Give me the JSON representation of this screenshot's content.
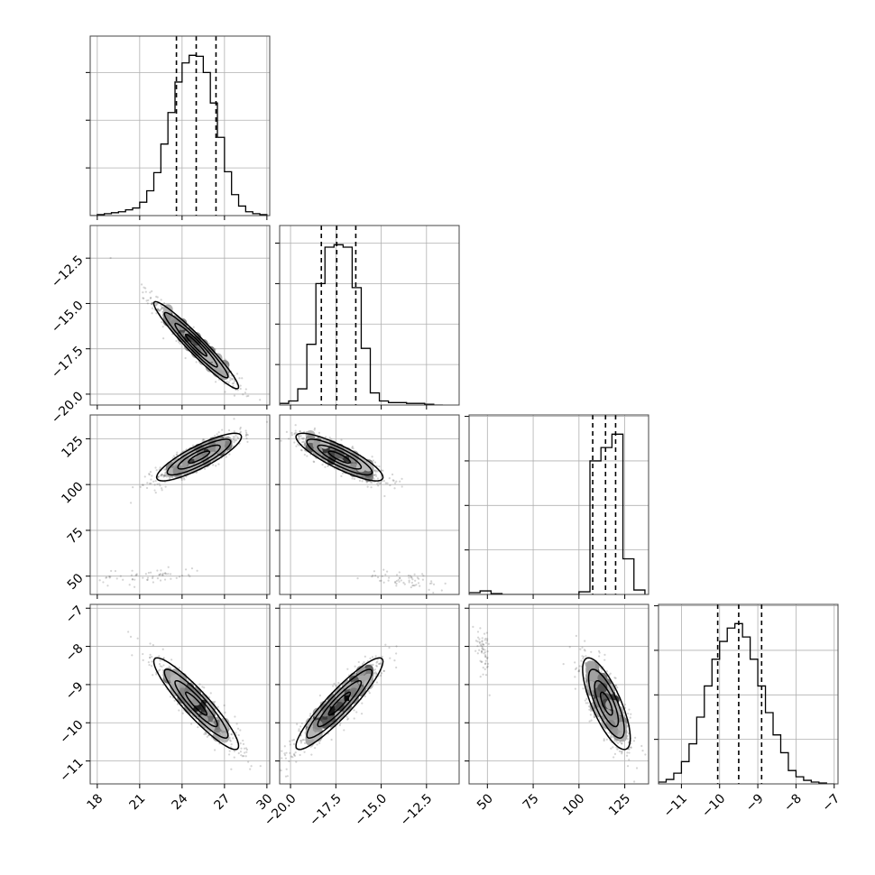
{
  "chart_data": {
    "type": "corner",
    "parameters": [
      {
        "range": [
          17.5,
          30.2
        ],
        "ticks": [
          18,
          21,
          24,
          27,
          30
        ],
        "tick_labels": [
          "18",
          "21",
          "24",
          "27",
          "30"
        ],
        "quantiles": [
          23.6,
          25.0,
          26.4
        ],
        "hist": {
          "edges": [
            17.5,
            18.0,
            18.5,
            19.0,
            19.5,
            20.0,
            20.5,
            21.0,
            21.5,
            22.0,
            22.5,
            23.0,
            23.5,
            24.0,
            24.5,
            25.0,
            25.5,
            26.0,
            26.5,
            27.0,
            27.5,
            28.0,
            28.5,
            29.0,
            29.5,
            30.0
          ],
          "counts": [
            0,
            1,
            2,
            3,
            4,
            6,
            8,
            14,
            26,
            45,
            75,
            108,
            140,
            160,
            168,
            167,
            150,
            118,
            82,
            46,
            22,
            10,
            4,
            2,
            1
          ]
        }
      },
      {
        "range": [
          -20.6,
          -10.7
        ],
        "ticks": [
          -20.0,
          -17.5,
          -15.0,
          -12.5
        ],
        "tick_labels": [
          "−20.0",
          "−17.5",
          "−15.0",
          "−12.5"
        ],
        "quantiles": [
          -18.3,
          -17.45,
          -16.4
        ],
        "hist": {
          "edges": [
            -20.6,
            -20.1,
            -19.6,
            -19.1,
            -18.6,
            -18.1,
            -17.6,
            -17.1,
            -16.6,
            -16.1,
            -15.6,
            -15.1,
            -14.6,
            -14.1,
            -13.6,
            -13.1,
            -12.6,
            -12.1,
            -11.6
          ],
          "counts": [
            2,
            5,
            20,
            75,
            150,
            195,
            198,
            195,
            145,
            70,
            15,
            5,
            3,
            3,
            2,
            2,
            1,
            0
          ]
        }
      },
      {
        "range": [
          40,
          138
        ],
        "ticks": [
          50,
          75,
          100,
          125
        ],
        "tick_labels": [
          "50",
          "75",
          "100",
          "125"
        ],
        "quantiles": [
          107.5,
          114.5,
          120.0
        ],
        "hist": {
          "edges": [
            40,
            46,
            52,
            58,
            64,
            70,
            76,
            82,
            88,
            94,
            100,
            106,
            112,
            118,
            124,
            130,
            136
          ],
          "counts": [
            2,
            4,
            1,
            0,
            0,
            0,
            0,
            0,
            0,
            0,
            3,
            150,
            165,
            180,
            40,
            5
          ]
        }
      },
      {
        "range": [
          -11.6,
          -6.9
        ],
        "ticks": [
          -11,
          -10,
          -9,
          -8,
          -7
        ],
        "tick_labels": [
          "−11",
          "−10",
          "−9",
          "−8",
          "−7"
        ],
        "quantiles": [
          -10.05,
          -9.5,
          -8.9
        ],
        "hist": {
          "edges": [
            -11.6,
            -11.4,
            -11.2,
            -11.0,
            -10.8,
            -10.6,
            -10.4,
            -10.2,
            -10.0,
            -9.8,
            -9.6,
            -9.4,
            -9.2,
            -9.0,
            -8.8,
            -8.6,
            -8.4,
            -8.2,
            -8.0,
            -7.8,
            -7.6,
            -7.4,
            -7.2,
            -7.0
          ],
          "counts": [
            2,
            5,
            12,
            25,
            45,
            75,
            110,
            140,
            160,
            175,
            180,
            165,
            140,
            110,
            80,
            55,
            35,
            15,
            8,
            4,
            2,
            1,
            0
          ]
        }
      }
    ],
    "pairs": [
      {
        "x": 0,
        "y": 1,
        "cx": 25.0,
        "cy": -17.3,
        "sx": 1.5,
        "sy": 1.2,
        "rho": -0.96
      },
      {
        "x": 0,
        "y": 2,
        "cx": 25.2,
        "cy": 115.0,
        "sx": 1.5,
        "sy": 6.5,
        "rho": 0.85
      },
      {
        "x": 1,
        "y": 2,
        "cx": -17.3,
        "cy": 115.0,
        "sx": 1.2,
        "sy": 6.5,
        "rho": -0.85
      },
      {
        "x": 0,
        "y": 3,
        "cx": 25.0,
        "cy": -9.5,
        "sx": 1.5,
        "sy": 0.6,
        "rho": -0.92
      },
      {
        "x": 1,
        "y": 3,
        "cx": -17.3,
        "cy": -9.5,
        "sx": 1.2,
        "sy": 0.6,
        "rho": 0.92
      },
      {
        "x": 2,
        "y": 3,
        "cx": 115.0,
        "cy": -9.5,
        "sx": 6.5,
        "sy": 0.6,
        "rho": -0.75
      }
    ],
    "outlier_clusters": [
      {
        "x": 0,
        "y": 2,
        "cx": 21.5,
        "cy": 50.0,
        "sx": 2.0,
        "sy": 2.5,
        "rho": 0.3
      },
      {
        "x": 1,
        "y": 2,
        "cx": -13.5,
        "cy": 48.0,
        "sx": 1.2,
        "sy": 2.5,
        "rho": -0.3
      },
      {
        "x": 2,
        "y": 3,
        "cx": 48.0,
        "cy": -8.1,
        "sx": 2.0,
        "sy": 0.35,
        "rho": -0.5
      }
    ],
    "contour_levels_sigma": [
      0.5,
      1.0,
      1.5,
      2.0
    ],
    "grid": true
  }
}
